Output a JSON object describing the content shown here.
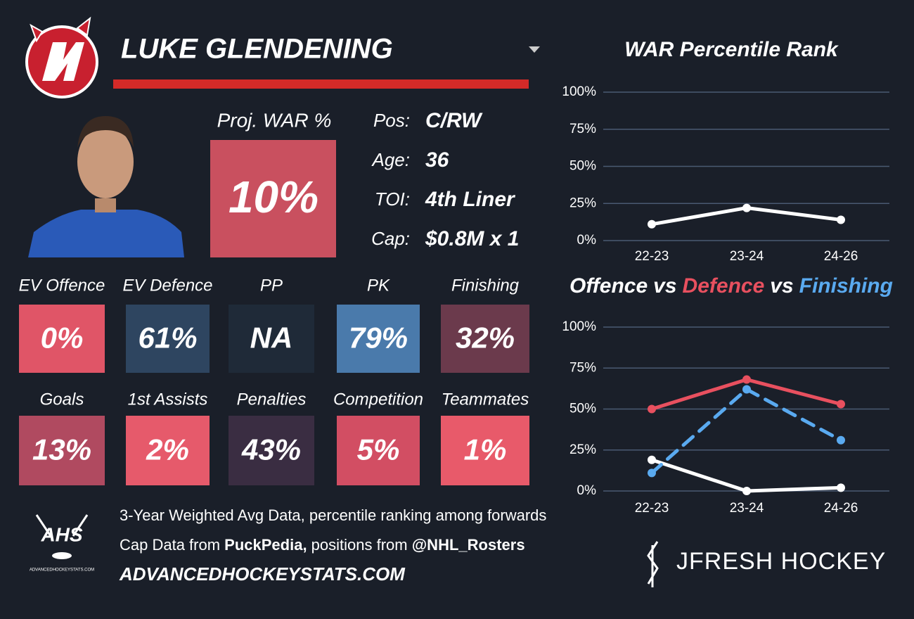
{
  "header": {
    "player_name": "LUKE GLENDENING"
  },
  "proj_war": {
    "label": "Proj. WAR %",
    "value": "10%",
    "color": "#c9505f"
  },
  "info": [
    {
      "label": "Pos:",
      "value": "C/RW"
    },
    {
      "label": "Age:",
      "value": "36"
    },
    {
      "label": "TOI:",
      "value": "4th Liner"
    },
    {
      "label": "Cap:",
      "value": "$0.8M x 1"
    }
  ],
  "tiles": [
    {
      "label": "EV Offence",
      "value": "0%",
      "color": "#e05567"
    },
    {
      "label": "EV Defence",
      "value": "61%",
      "color": "#2e4560"
    },
    {
      "label": "PP",
      "value": "NA",
      "color": "#1f2a38"
    },
    {
      "label": "PK",
      "value": "79%",
      "color": "#4a7aab"
    },
    {
      "label": "Finishing",
      "value": "32%",
      "color": "#6b3a4c"
    },
    {
      "label": "Goals",
      "value": "13%",
      "color": "#b04a60"
    },
    {
      "label": "1st Assists",
      "value": "2%",
      "color": "#e65a6b"
    },
    {
      "label": "Penalties",
      "value": "43%",
      "color": "#3a2d42"
    },
    {
      "label": "Competition",
      "value": "5%",
      "color": "#d24e63"
    },
    {
      "label": "Teammates",
      "value": "1%",
      "color": "#e85a6a"
    }
  ],
  "footer": {
    "note": "3-Year Weighted Avg Data, percentile ranking among forwards",
    "cap_prefix": "Cap Data from ",
    "cap_source": "PuckPedia,",
    "pos_prefix": " positions from ",
    "pos_source": "@NHL_Rosters",
    "site": "ADVANCEDHOCKEYSTATS.COM",
    "logo_left": "AHS",
    "logo_left_small": "ADVANCEDHOCKEYSTATS.COM",
    "logo_right": "JFRESH HOCKEY"
  },
  "chart_data": [
    {
      "type": "line",
      "title": "WAR Percentile Rank",
      "categories": [
        "22-23",
        "23-24",
        "24-26"
      ],
      "series": [
        {
          "color": "#ffffff",
          "values": [
            11,
            22,
            14
          ]
        }
      ],
      "ylim": [
        0,
        100
      ],
      "yticks": [
        {
          "value": 0,
          "label": "0%"
        },
        {
          "value": 25,
          "label": "25%"
        },
        {
          "value": 50,
          "label": "50%"
        },
        {
          "value": 75,
          "label": "75%"
        },
        {
          "value": 100,
          "label": "100%"
        }
      ],
      "grid": true
    },
    {
      "type": "line",
      "title_joiner": "vs",
      "categories": [
        "22-23",
        "23-24",
        "24-26"
      ],
      "series": [
        {
          "name": "Offence",
          "color": "#ffffff",
          "values": [
            19,
            0,
            2
          ]
        },
        {
          "name": "Defence",
          "color": "#e8505f",
          "values": [
            50,
            68,
            53
          ]
        },
        {
          "name": "Finishing",
          "color": "#5aaaf0",
          "dashed": true,
          "values": [
            11,
            62,
            31
          ]
        }
      ],
      "ylim": [
        0,
        100
      ],
      "yticks": [
        {
          "value": 0,
          "label": "0%"
        },
        {
          "value": 25,
          "label": "25%"
        },
        {
          "value": 50,
          "label": "50%"
        },
        {
          "value": 75,
          "label": "75%"
        },
        {
          "value": 100,
          "label": "100%"
        }
      ],
      "grid": true
    }
  ]
}
